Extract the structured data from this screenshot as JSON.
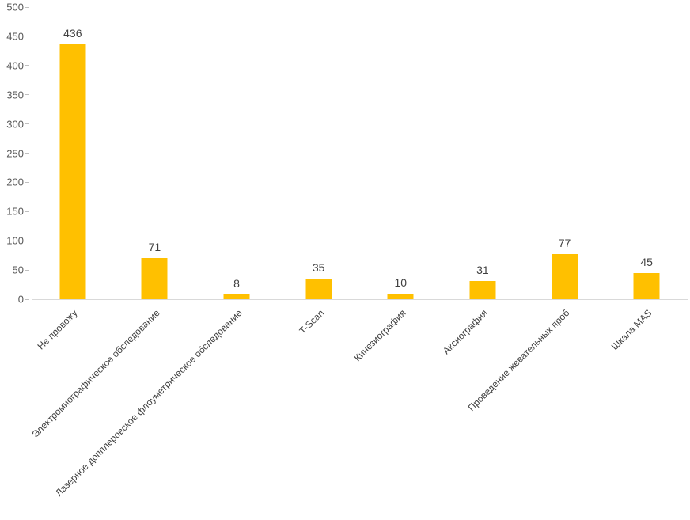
{
  "chart_data": {
    "type": "bar",
    "title": "",
    "xlabel": "",
    "ylabel": "",
    "categories": [
      "Не провожу",
      "Электромиографическое обследование",
      "Лазерное допплеровское флоуметрическое обследование",
      "T-Scan",
      "Кинезиография",
      "Аксиография",
      "Проведение жевательных проб",
      "Шкала MAS"
    ],
    "values": [
      436,
      71,
      8,
      35,
      10,
      31,
      77,
      45
    ],
    "ylim": [
      0,
      500
    ],
    "ytick_step": 50,
    "ytick_labels": [
      "0",
      "50",
      "100",
      "150",
      "200",
      "250",
      "300",
      "350",
      "400",
      "450",
      "500"
    ],
    "bar_color": "#FFC000",
    "axis_line_color": "#d9d9d9",
    "tick_color": "#bfbfbf",
    "label_color": "#404040",
    "ytick_label_color": "#595959",
    "grid": false,
    "legend": "none",
    "data_labels": true
  }
}
